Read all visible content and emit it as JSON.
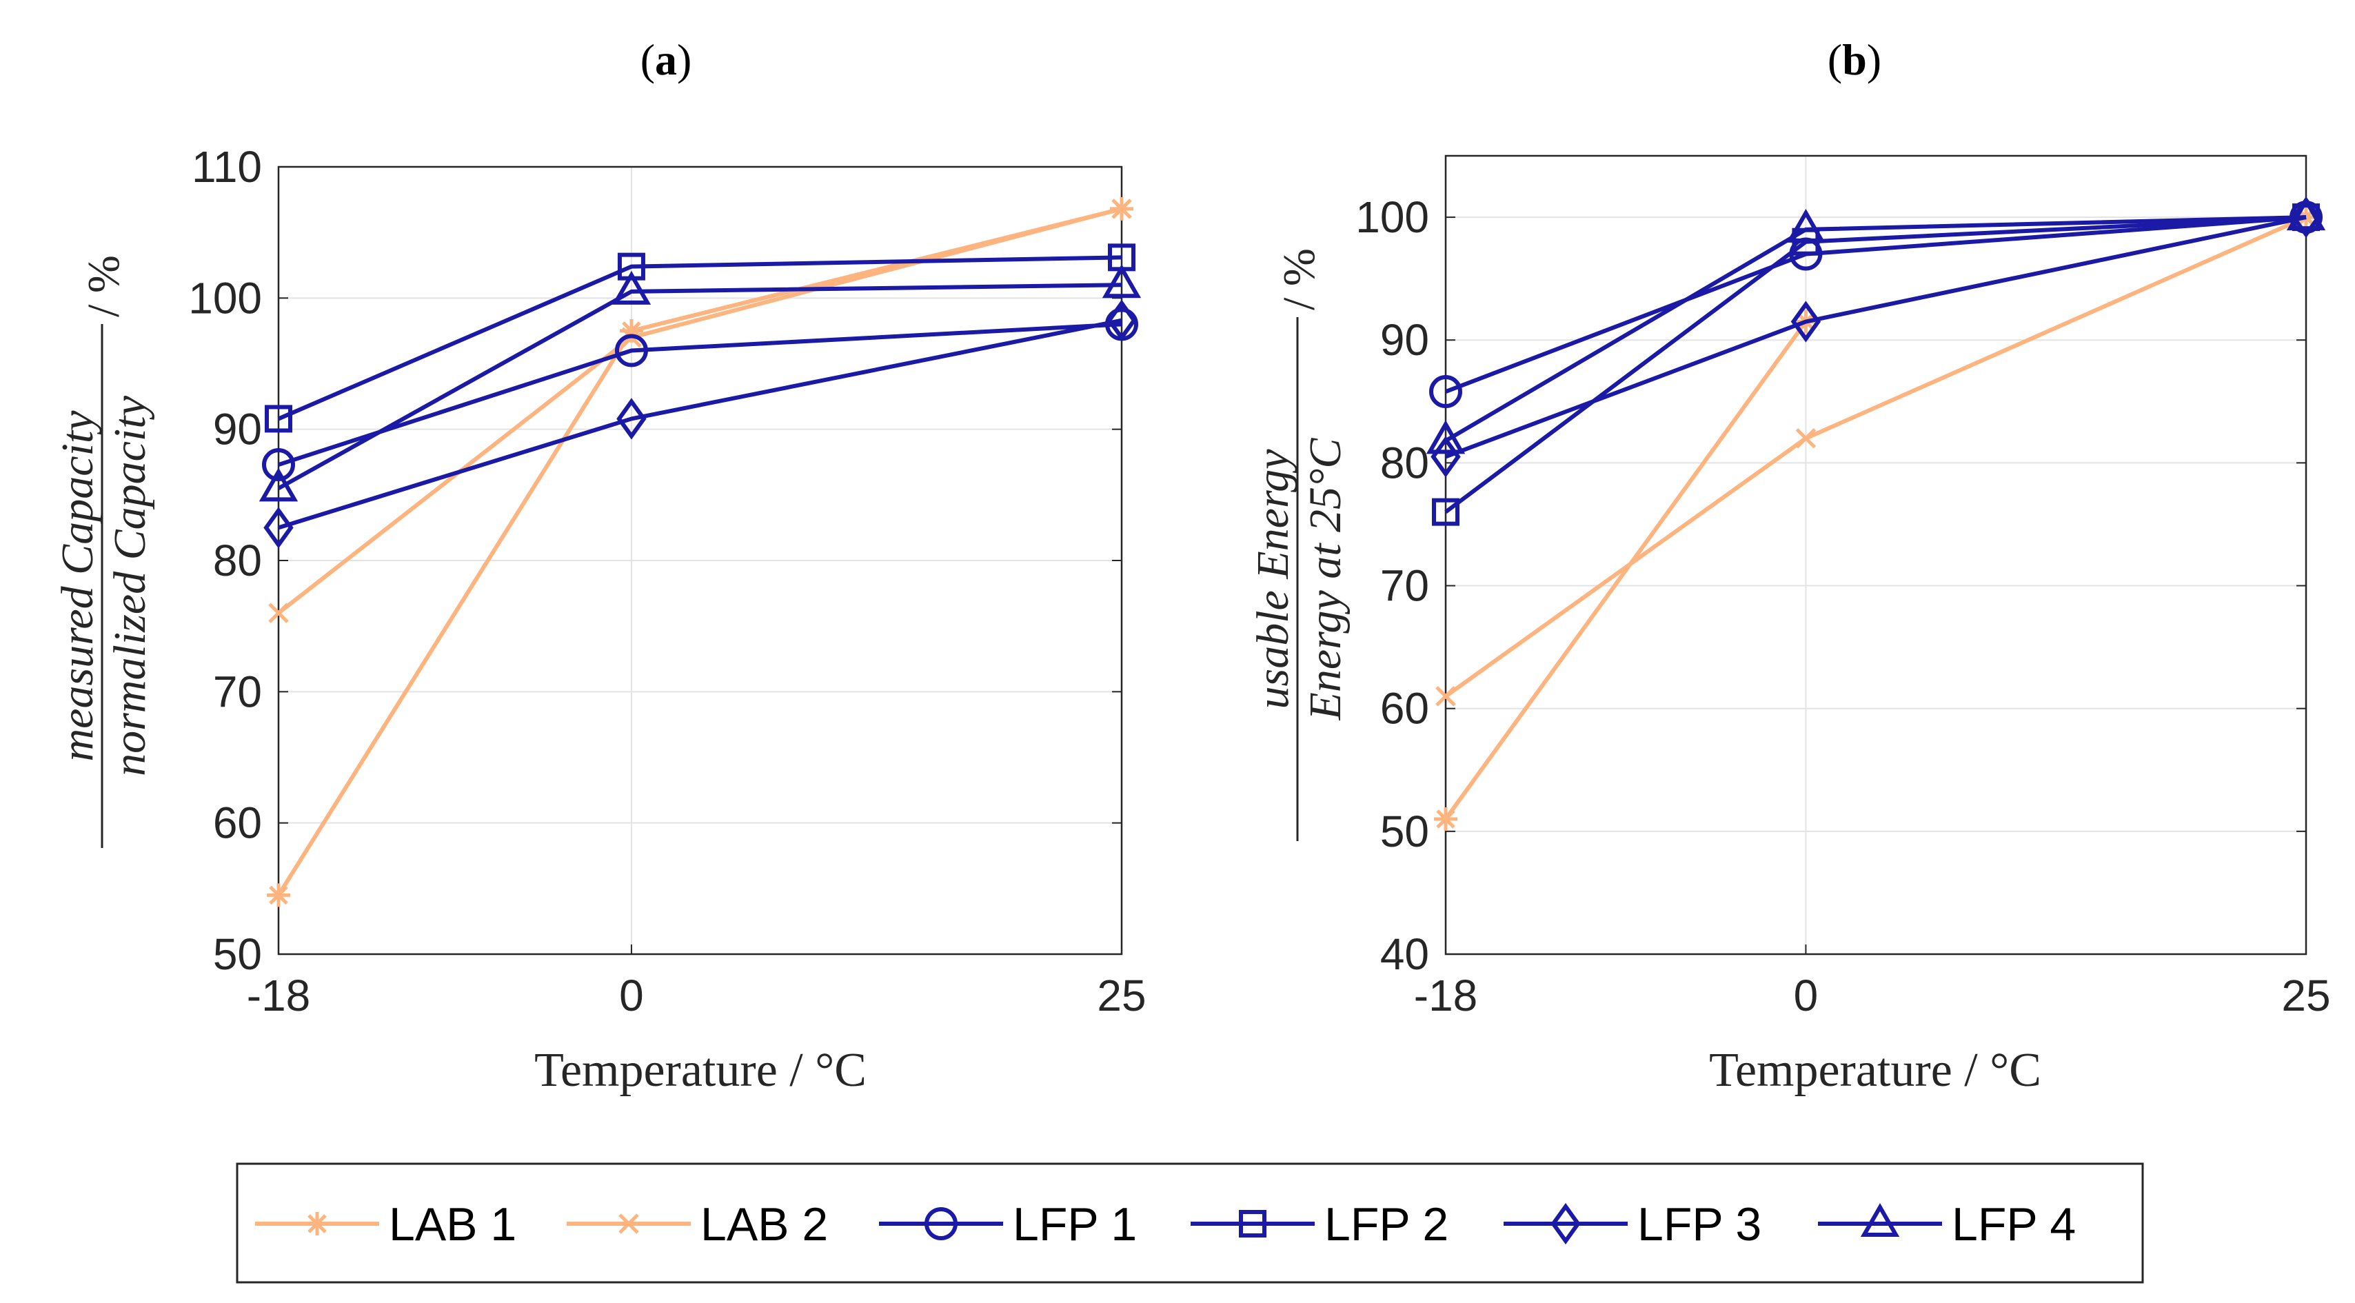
{
  "chart_data": [
    {
      "panel_label": "(a)",
      "panel_letter": "a",
      "type": "line",
      "xlabel": "Temperature / °C",
      "ylabel": {
        "numerator": "measured Capacity",
        "denominator": "normalized Capacity",
        "unit": " / %"
      },
      "x_ticks": [
        "-18",
        "0",
        "25"
      ],
      "y_ticks": [
        "50",
        "60",
        "70",
        "80",
        "90",
        "100",
        "110"
      ],
      "xlim": [
        -18,
        25
      ],
      "ylim": [
        50,
        110
      ],
      "grid": true,
      "x": [
        -18,
        0,
        25
      ],
      "series": [
        {
          "name": "LAB 1",
          "marker": "asterisk",
          "color": "#FDB47E",
          "values": [
            54.5,
            97.5,
            106.8
          ]
        },
        {
          "name": "LAB 2",
          "marker": "x",
          "color": "#FDB47E",
          "values": [
            76,
            97,
            106.8
          ]
        },
        {
          "name": "LFP 1",
          "marker": "circle",
          "color": "#1A1AA6",
          "values": [
            87.3,
            96,
            98
          ]
        },
        {
          "name": "LFP 2",
          "marker": "square",
          "color": "#1A1AA6",
          "values": [
            90.8,
            102.4,
            103.1
          ]
        },
        {
          "name": "LFP 3",
          "marker": "diamond",
          "color": "#1A1AA6",
          "values": [
            82.5,
            90.8,
            98.3
          ]
        },
        {
          "name": "LFP 4",
          "marker": "triangle",
          "color": "#1A1AA6",
          "values": [
            85.5,
            100.5,
            101
          ]
        }
      ]
    },
    {
      "panel_label": "(b)",
      "panel_letter": "b",
      "type": "line",
      "xlabel": "Temperature / °C",
      "ylabel": {
        "numerator": "usable Energy",
        "denominator": "Energy at 25°C",
        "unit": " / %"
      },
      "x_ticks": [
        "-18",
        "0",
        "25"
      ],
      "y_ticks": [
        "40",
        "50",
        "60",
        "70",
        "80",
        "90",
        "100"
      ],
      "xlim": [
        -18,
        25
      ],
      "ylim": [
        40,
        105
      ],
      "grid": true,
      "x": [
        -18,
        0,
        25
      ],
      "series": [
        {
          "name": "LAB 1",
          "marker": "asterisk",
          "color": "#FDB47E",
          "values": [
            51,
            91.5,
            100
          ]
        },
        {
          "name": "LAB 2",
          "marker": "x",
          "color": "#FDB47E",
          "values": [
            61,
            82,
            100
          ]
        },
        {
          "name": "LFP 1",
          "marker": "circle",
          "color": "#1A1AA6",
          "values": [
            85.8,
            97,
            100
          ]
        },
        {
          "name": "LFP 2",
          "marker": "square",
          "color": "#1A1AA6",
          "values": [
            76,
            98,
            100
          ]
        },
        {
          "name": "LFP 3",
          "marker": "diamond",
          "color": "#1A1AA6",
          "values": [
            80.5,
            91.5,
            100
          ]
        },
        {
          "name": "LFP 4",
          "marker": "triangle",
          "color": "#1A1AA6",
          "values": [
            81.8,
            99,
            100
          ]
        }
      ]
    }
  ],
  "legend": {
    "placement": "bottom",
    "entries": [
      {
        "name": "LAB 1",
        "marker": "asterisk",
        "color": "#FDB47E"
      },
      {
        "name": "LAB 2",
        "marker": "x",
        "color": "#FDB47E"
      },
      {
        "name": "LFP 1",
        "marker": "circle",
        "color": "#1A1AA6"
      },
      {
        "name": "LFP 2",
        "marker": "square",
        "color": "#1A1AA6"
      },
      {
        "name": "LFP 3",
        "marker": "diamond",
        "color": "#1A1AA6"
      },
      {
        "name": "LFP 4",
        "marker": "triangle",
        "color": "#1A1AA6"
      }
    ]
  }
}
